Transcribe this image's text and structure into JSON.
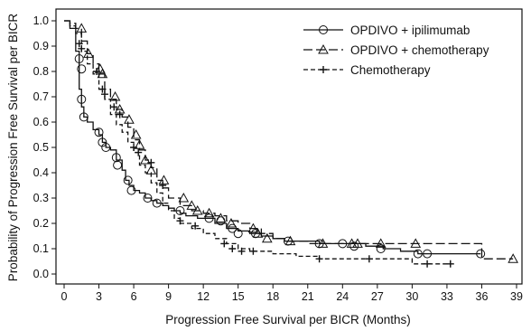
{
  "chart_data": {
    "type": "line",
    "subtype": "kaplan-meier step curves",
    "xlabel": "Progression Free Survival per BICR (Months)",
    "ylabel": "Probability of Progression Free Survival per BICR",
    "xlim": [
      0,
      39
    ],
    "ylim": [
      0,
      1.0
    ],
    "x_ticks": [
      "0",
      "3",
      "6",
      "9",
      "12",
      "15",
      "18",
      "21",
      "24",
      "27",
      "30",
      "33",
      "36",
      "39"
    ],
    "y_ticks": [
      "0.0",
      "0.1",
      "0.2",
      "0.3",
      "0.4",
      "0.5",
      "0.6",
      "0.7",
      "0.8",
      "0.9",
      "1.0"
    ],
    "grid": false,
    "legend_position": "top-right",
    "series": [
      {
        "name": "OPDIVO + ipilimumab",
        "line_style": "solid",
        "censor_marker": "circle",
        "color": "#111111",
        "x": [
          0,
          0.5,
          1.0,
          1.3,
          1.5,
          1.7,
          2.0,
          2.5,
          3.0,
          3.3,
          3.6,
          4.0,
          4.5,
          5.0,
          5.3,
          5.6,
          6.0,
          6.5,
          7.0,
          7.5,
          8.0,
          8.5,
          9.0,
          9.5,
          10.0,
          10.5,
          11.0,
          11.5,
          12.0,
          13.0,
          14.0,
          15.0,
          16.0,
          17.0,
          18.0,
          19.0,
          20.0,
          22.0,
          24.0,
          26.0,
          27.5,
          29.0,
          30.5,
          33.0,
          35.9
        ],
        "y": [
          1.0,
          0.97,
          0.88,
          0.73,
          0.66,
          0.62,
          0.6,
          0.57,
          0.55,
          0.52,
          0.5,
          0.49,
          0.45,
          0.41,
          0.37,
          0.35,
          0.33,
          0.32,
          0.3,
          0.29,
          0.28,
          0.27,
          0.26,
          0.25,
          0.24,
          0.23,
          0.23,
          0.22,
          0.22,
          0.2,
          0.18,
          0.17,
          0.16,
          0.15,
          0.14,
          0.13,
          0.13,
          0.12,
          0.12,
          0.11,
          0.1,
          0.09,
          0.08,
          0.08,
          0.08
        ],
        "censored": [
          [
            1.3,
            0.85
          ],
          [
            1.5,
            0.81
          ],
          [
            1.5,
            0.69
          ],
          [
            1.7,
            0.62
          ],
          [
            3.0,
            0.56
          ],
          [
            3.3,
            0.52
          ],
          [
            3.6,
            0.5
          ],
          [
            4.5,
            0.46
          ],
          [
            4.6,
            0.43
          ],
          [
            5.5,
            0.37
          ],
          [
            5.8,
            0.33
          ],
          [
            7.2,
            0.3
          ],
          [
            8.0,
            0.28
          ],
          [
            10.0,
            0.25
          ],
          [
            12.5,
            0.22
          ],
          [
            13.5,
            0.21
          ],
          [
            14.5,
            0.18
          ],
          [
            15.0,
            0.16
          ],
          [
            16.5,
            0.16
          ],
          [
            19.3,
            0.13
          ],
          [
            22.0,
            0.12
          ],
          [
            24.0,
            0.12
          ],
          [
            25.0,
            0.11
          ],
          [
            27.3,
            0.1
          ],
          [
            30.5,
            0.08
          ],
          [
            31.3,
            0.08
          ],
          [
            35.9,
            0.08
          ]
        ]
      },
      {
        "name": "OPDIVO + chemotherapy",
        "line_style": "long-dash",
        "censor_marker": "triangle",
        "color": "#111111",
        "x": [
          0,
          0.5,
          1.0,
          1.5,
          2.0,
          2.5,
          3.0,
          3.5,
          4.0,
          4.5,
          5.0,
          5.5,
          6.0,
          6.5,
          7.0,
          7.5,
          8.0,
          8.5,
          9.0,
          10.0,
          11.0,
          12.0,
          13.0,
          14.0,
          15.0,
          16.0,
          17.0,
          18.0,
          19.0,
          20.0,
          21.0,
          23.0,
          25.0,
          27.0,
          30.0,
          33.0,
          36.0,
          38.7
        ],
        "y": [
          1.0,
          0.99,
          0.97,
          0.92,
          0.87,
          0.83,
          0.79,
          0.73,
          0.69,
          0.65,
          0.62,
          0.58,
          0.53,
          0.49,
          0.45,
          0.42,
          0.37,
          0.34,
          0.3,
          0.27,
          0.25,
          0.24,
          0.23,
          0.21,
          0.2,
          0.18,
          0.16,
          0.14,
          0.13,
          0.13,
          0.12,
          0.12,
          0.12,
          0.12,
          0.12,
          0.12,
          0.06,
          0.06
        ],
        "censored": [
          [
            1.5,
            0.97
          ],
          [
            2.1,
            0.87
          ],
          [
            3.1,
            0.81
          ],
          [
            3.3,
            0.79
          ],
          [
            4.4,
            0.7
          ],
          [
            4.8,
            0.65
          ],
          [
            5.6,
            0.61
          ],
          [
            6.2,
            0.55
          ],
          [
            6.5,
            0.51
          ],
          [
            7.0,
            0.45
          ],
          [
            7.5,
            0.41
          ],
          [
            8.6,
            0.37
          ],
          [
            10.3,
            0.3
          ],
          [
            11.0,
            0.27
          ],
          [
            11.5,
            0.25
          ],
          [
            12.5,
            0.24
          ],
          [
            13.5,
            0.22
          ],
          [
            14.4,
            0.2
          ],
          [
            16.3,
            0.18
          ],
          [
            16.7,
            0.16
          ],
          [
            17.5,
            0.14
          ],
          [
            19.5,
            0.13
          ],
          [
            22.3,
            0.12
          ],
          [
            24.8,
            0.12
          ],
          [
            25.3,
            0.12
          ],
          [
            27.3,
            0.12
          ],
          [
            30.3,
            0.12
          ],
          [
            38.7,
            0.06
          ]
        ]
      },
      {
        "name": "Chemotherapy",
        "line_style": "short-dash",
        "censor_marker": "plus",
        "color": "#111111",
        "x": [
          0,
          0.5,
          1.0,
          1.5,
          2.0,
          2.5,
          3.0,
          3.5,
          4.0,
          4.5,
          5.0,
          5.5,
          6.0,
          6.5,
          7.0,
          7.5,
          8.0,
          8.5,
          9.0,
          9.5,
          10.0,
          11.0,
          12.0,
          13.0,
          14.0,
          15.0,
          16.0,
          18.0,
          20.0,
          22.0,
          24.0,
          27.0,
          30.0,
          33.3
        ],
        "y": [
          1.0,
          0.98,
          0.95,
          0.88,
          0.83,
          0.79,
          0.73,
          0.69,
          0.63,
          0.59,
          0.56,
          0.52,
          0.48,
          0.43,
          0.4,
          0.36,
          0.32,
          0.28,
          0.25,
          0.22,
          0.2,
          0.18,
          0.16,
          0.14,
          0.12,
          0.1,
          0.09,
          0.08,
          0.07,
          0.06,
          0.06,
          0.06,
          0.04,
          0.04
        ],
        "censored": [
          [
            1.3,
            0.91
          ],
          [
            1.5,
            0.89
          ],
          [
            2.8,
            0.8
          ],
          [
            3.3,
            0.73
          ],
          [
            3.5,
            0.71
          ],
          [
            4.3,
            0.66
          ],
          [
            4.8,
            0.63
          ],
          [
            6.0,
            0.5
          ],
          [
            6.4,
            0.48
          ],
          [
            7.5,
            0.44
          ],
          [
            8.5,
            0.35
          ],
          [
            10.0,
            0.21
          ],
          [
            11.3,
            0.19
          ],
          [
            13.8,
            0.12
          ],
          [
            14.5,
            0.1
          ],
          [
            15.3,
            0.09
          ],
          [
            16.3,
            0.09
          ],
          [
            22.0,
            0.06
          ],
          [
            26.3,
            0.06
          ],
          [
            31.3,
            0.04
          ],
          [
            33.3,
            0.04
          ]
        ]
      }
    ]
  }
}
